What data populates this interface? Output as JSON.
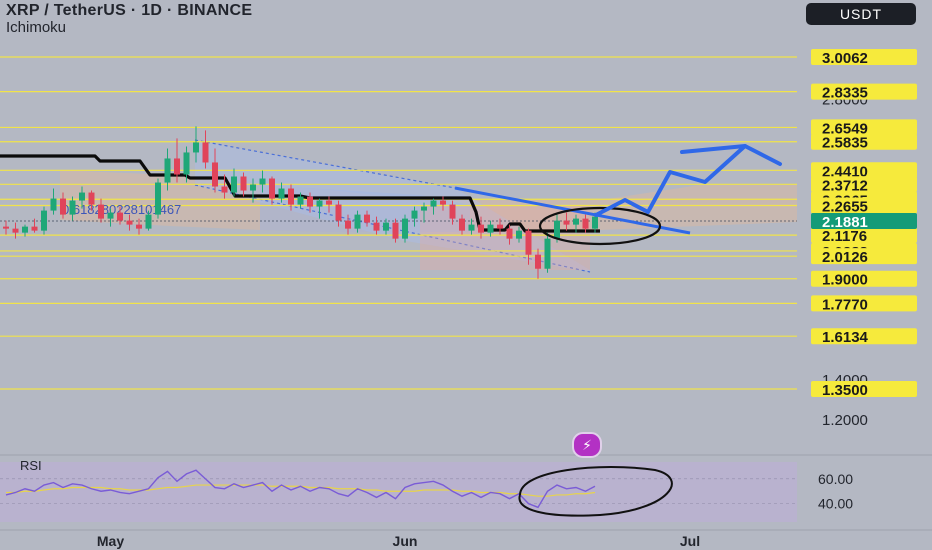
{
  "header": {
    "title": "XRP / TetherUS · 1D · BINANCE",
    "indicator": "Ichimoku",
    "currency_button": "USDT"
  },
  "colors": {
    "background": "#b4b8c3",
    "level_line": "#f1e34a",
    "price_tag": "#f6ea3c",
    "current_tag": "#149b78",
    "bull": "#1fa778",
    "bear": "#e0445a",
    "projection": "#2f68e8",
    "rsi_line": "#7a5cd6",
    "rsi_ma": "#e8d44a"
  },
  "icons": {
    "bolt": "lightning-icon"
  },
  "chart_data": {
    "type": "candlestick",
    "price_scale": {
      "min": 1.13,
      "max": 3.08
    },
    "levels": [
      {
        "value": 3.0062,
        "label": "3.0062"
      },
      {
        "value": 2.8335,
        "label": "2.8335"
      },
      {
        "value": 2.6549,
        "label": "2.6549"
      },
      {
        "value": 2.5835,
        "label": "2.5835"
      },
      {
        "value": 2.441,
        "label": "2.4410"
      },
      {
        "value": 2.3712,
        "label": "2.3712"
      },
      {
        "value": 2.2965,
        "label": "2.2965"
      },
      {
        "value": 2.2655,
        "label": "2.2655"
      },
      {
        "value": 2.1176,
        "label": "2.1176"
      },
      {
        "value": 2.0388,
        "label": "2.0388"
      },
      {
        "value": 2.0126,
        "label": "2.0126"
      },
      {
        "value": 1.9,
        "label": "1.9000"
      },
      {
        "value": 1.777,
        "label": "1.7770"
      },
      {
        "value": 1.6134,
        "label": "1.6134"
      },
      {
        "value": 1.35,
        "label": "1.3500"
      }
    ],
    "axis_ticks": [
      {
        "value": 2.8,
        "label": "2.8000"
      },
      {
        "value": 1.4,
        "label": "1.4000"
      },
      {
        "value": 1.2,
        "label": "1.2000"
      }
    ],
    "current_price": {
      "value": 2.1881,
      "label": "2.1881"
    },
    "x_axis_labels": [
      {
        "label": "May",
        "index": 11
      },
      {
        "label": "Jun",
        "index": 42
      },
      {
        "label": "Jul",
        "index": 72
      }
    ],
    "fib_text": "0.618280228101467",
    "ohlc": [
      [
        2.16,
        2.19,
        2.12,
        2.15
      ],
      [
        2.15,
        2.18,
        2.1,
        2.13
      ],
      [
        2.13,
        2.17,
        2.11,
        2.16
      ],
      [
        2.16,
        2.2,
        2.13,
        2.14
      ],
      [
        2.14,
        2.26,
        2.12,
        2.24
      ],
      [
        2.24,
        2.35,
        2.22,
        2.3
      ],
      [
        2.3,
        2.33,
        2.2,
        2.22
      ],
      [
        2.22,
        2.31,
        2.19,
        2.29
      ],
      [
        2.29,
        2.36,
        2.25,
        2.33
      ],
      [
        2.33,
        2.34,
        2.24,
        2.27
      ],
      [
        2.27,
        2.3,
        2.18,
        2.2
      ],
      [
        2.2,
        2.25,
        2.16,
        2.23
      ],
      [
        2.23,
        2.26,
        2.17,
        2.19
      ],
      [
        2.19,
        2.22,
        2.14,
        2.17
      ],
      [
        2.17,
        2.2,
        2.12,
        2.15
      ],
      [
        2.15,
        2.24,
        2.14,
        2.22
      ],
      [
        2.22,
        2.4,
        2.2,
        2.38
      ],
      [
        2.38,
        2.55,
        2.34,
        2.5
      ],
      [
        2.5,
        2.6,
        2.38,
        2.42
      ],
      [
        2.42,
        2.56,
        2.38,
        2.53
      ],
      [
        2.53,
        2.66,
        2.48,
        2.58
      ],
      [
        2.58,
        2.64,
        2.45,
        2.48
      ],
      [
        2.48,
        2.55,
        2.33,
        2.36
      ],
      [
        2.36,
        2.42,
        2.3,
        2.33
      ],
      [
        2.33,
        2.45,
        2.31,
        2.41
      ],
      [
        2.41,
        2.43,
        2.31,
        2.34
      ],
      [
        2.34,
        2.4,
        2.28,
        2.37
      ],
      [
        2.37,
        2.44,
        2.33,
        2.4
      ],
      [
        2.4,
        2.41,
        2.27,
        2.3
      ],
      [
        2.3,
        2.38,
        2.28,
        2.35
      ],
      [
        2.35,
        2.37,
        2.24,
        2.27
      ],
      [
        2.27,
        2.33,
        2.25,
        2.31
      ],
      [
        2.31,
        2.33,
        2.23,
        2.26
      ],
      [
        2.26,
        2.3,
        2.2,
        2.29
      ],
      [
        2.29,
        2.31,
        2.23,
        2.27
      ],
      [
        2.27,
        2.29,
        2.16,
        2.19
      ],
      [
        2.19,
        2.22,
        2.12,
        2.15
      ],
      [
        2.15,
        2.24,
        2.13,
        2.22
      ],
      [
        2.22,
        2.24,
        2.16,
        2.18
      ],
      [
        2.18,
        2.21,
        2.12,
        2.14
      ],
      [
        2.14,
        2.2,
        2.12,
        2.18
      ],
      [
        2.18,
        2.2,
        2.08,
        2.1
      ],
      [
        2.1,
        2.22,
        2.08,
        2.2
      ],
      [
        2.2,
        2.26,
        2.16,
        2.24
      ],
      [
        2.24,
        2.28,
        2.18,
        2.26
      ],
      [
        2.26,
        2.3,
        2.22,
        2.29
      ],
      [
        2.29,
        2.31,
        2.24,
        2.27
      ],
      [
        2.27,
        2.29,
        2.17,
        2.2
      ],
      [
        2.2,
        2.22,
        2.12,
        2.14
      ],
      [
        2.14,
        2.2,
        2.12,
        2.17
      ],
      [
        2.17,
        2.21,
        2.1,
        2.13
      ],
      [
        2.13,
        2.19,
        2.11,
        2.17
      ],
      [
        2.17,
        2.2,
        2.12,
        2.15
      ],
      [
        2.15,
        2.17,
        2.07,
        2.1
      ],
      [
        2.1,
        2.16,
        2.08,
        2.14
      ],
      [
        2.14,
        2.15,
        1.97,
        2.02
      ],
      [
        2.02,
        2.05,
        1.9,
        1.95
      ],
      [
        1.95,
        2.13,
        1.93,
        2.1
      ],
      [
        2.1,
        2.22,
        2.08,
        2.19
      ],
      [
        2.19,
        2.23,
        2.14,
        2.17
      ],
      [
        2.17,
        2.22,
        2.13,
        2.2
      ],
      [
        2.2,
        2.22,
        2.13,
        2.15
      ],
      [
        2.15,
        2.23,
        2.13,
        2.21
      ]
    ],
    "rsi": {
      "scale": {
        "min": 30,
        "max": 72
      },
      "levels": [
        {
          "value": 60,
          "label": "60.00"
        },
        {
          "value": 40,
          "label": "40.00"
        }
      ],
      "line": [
        47,
        49,
        52,
        50,
        55,
        57,
        53,
        56,
        55,
        52,
        50,
        51,
        49,
        48,
        50,
        52,
        61,
        66,
        58,
        64,
        67,
        60,
        53,
        52,
        56,
        53,
        55,
        57,
        50,
        55,
        51,
        54,
        50,
        53,
        52,
        48,
        46,
        52,
        49,
        45,
        49,
        44,
        53,
        56,
        57,
        58,
        55,
        50,
        46,
        49,
        45,
        49,
        48,
        44,
        48,
        40,
        37,
        50,
        55,
        52,
        53,
        50,
        54
      ],
      "ma": [
        49,
        49,
        50,
        50,
        51,
        52,
        52,
        53,
        53,
        53,
        53,
        52,
        52,
        51,
        51,
        51,
        52,
        53,
        53,
        54,
        55,
        55,
        55,
        55,
        55,
        55,
        55,
        55,
        54,
        54,
        54,
        54,
        53,
        53,
        53,
        52,
        52,
        52,
        51,
        51,
        50,
        50,
        50,
        50,
        51,
        51,
        51,
        51,
        50,
        50,
        49,
        49,
        49,
        48,
        48,
        47,
        46,
        46,
        47,
        47,
        48,
        48,
        49
      ]
    }
  }
}
